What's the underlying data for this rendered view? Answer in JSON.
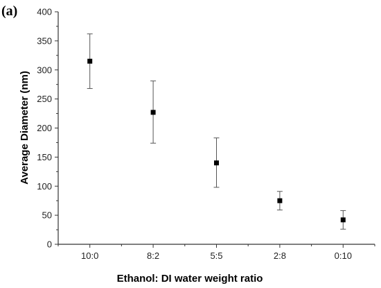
{
  "chart_data": {
    "type": "scatter",
    "panel_label": "(a)",
    "xlabel": "Ethanol: DI water weight ratio",
    "ylabel": "Average Diameter (nm)",
    "categories": [
      "10:0",
      "8:2",
      "5:5",
      "2:8",
      "0:10"
    ],
    "values": [
      315,
      227,
      140,
      75,
      42
    ],
    "error_low": [
      268,
      174,
      98,
      59,
      26
    ],
    "error_high": [
      362,
      281,
      183,
      91,
      58
    ],
    "ylim": [
      0,
      400
    ],
    "yticks": [
      0,
      50,
      100,
      150,
      200,
      250,
      300,
      350,
      400
    ],
    "marker": "square",
    "marker_color": "#000000",
    "grid": false,
    "legend": false
  }
}
